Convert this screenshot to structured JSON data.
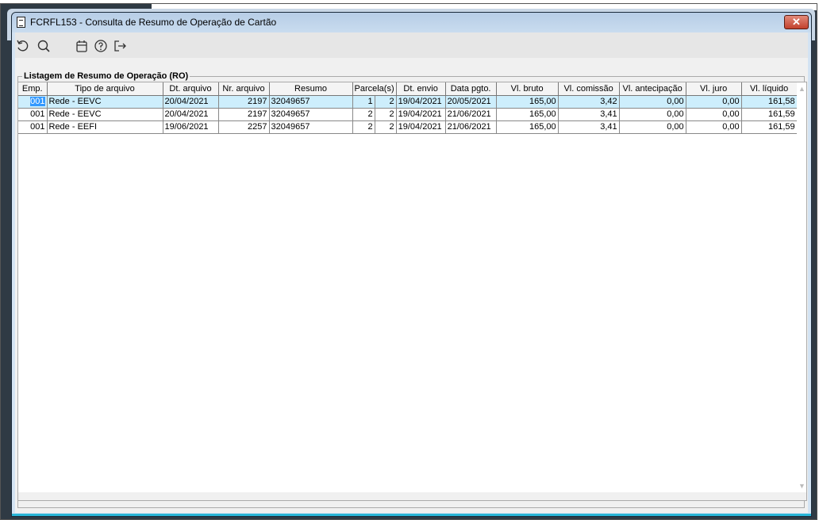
{
  "window": {
    "title": "FCRFL153 - Consulta de Resumo de Operação de Cartão",
    "close_label": "✕"
  },
  "toolbar": {
    "icons": [
      "refresh-icon",
      "search-icon",
      "calendar-icon",
      "help-icon",
      "exit-icon"
    ]
  },
  "group": {
    "title": "Listagem de Resumo de Operação (RO)"
  },
  "table": {
    "columns": [
      "Emp.",
      "Tipo de arquivo",
      "Dt. arquivo",
      "Nr. arquivo",
      "Resumo",
      "Parcela(s)",
      "Dt. envio",
      "Data pgto.",
      "Vl. bruto",
      "Vl. comissão",
      "Vl. antecipação",
      "Vl. juro",
      "Vl. líquido"
    ],
    "rows": [
      [
        "001",
        "Rede - EEVC",
        "20/04/2021",
        "2197",
        "32049657",
        "1",
        "2",
        "19/04/2021",
        "20/05/2021",
        "165,00",
        "3,42",
        "0,00",
        "0,00",
        "161,58"
      ],
      [
        "001",
        "Rede - EEVC",
        "20/04/2021",
        "2197",
        "32049657",
        "2",
        "2",
        "19/04/2021",
        "21/06/2021",
        "165,00",
        "3,41",
        "0,00",
        "0,00",
        "161,59"
      ],
      [
        "001",
        "Rede - EEFI",
        "19/06/2021",
        "2257",
        "32049657",
        "2",
        "2",
        "19/04/2021",
        "21/06/2021",
        "165,00",
        "3,41",
        "0,00",
        "0,00",
        "161,59"
      ]
    ],
    "selected_row": 0
  }
}
